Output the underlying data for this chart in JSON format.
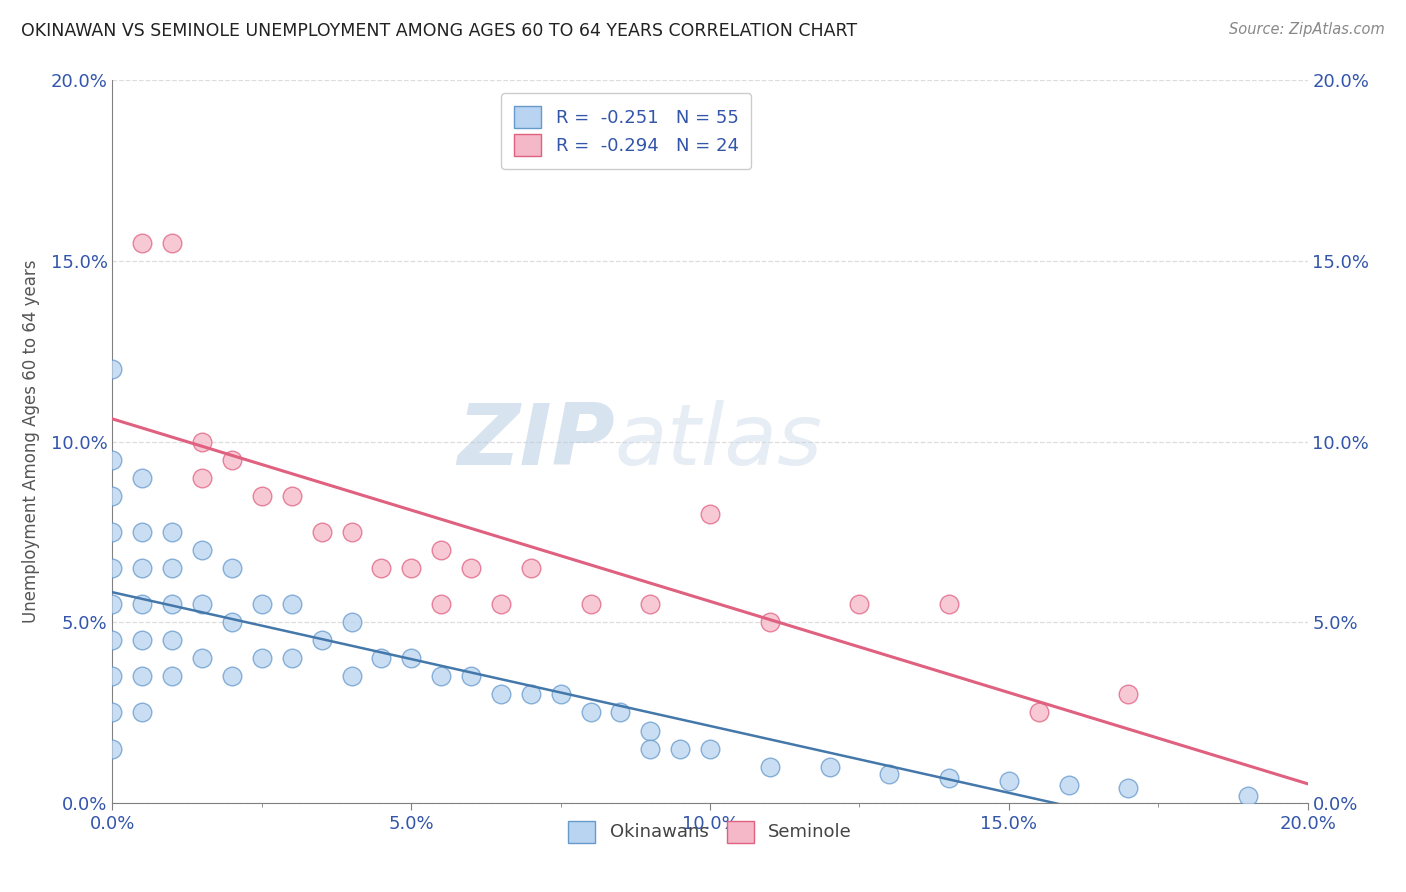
{
  "title": "OKINAWAN VS SEMINOLE UNEMPLOYMENT AMONG AGES 60 TO 64 YEARS CORRELATION CHART",
  "source": "Source: ZipAtlas.com",
  "ylabel": "Unemployment Among Ages 60 to 64 years",
  "xlim": [
    0.0,
    0.2
  ],
  "ylim": [
    0.0,
    0.2
  ],
  "ytick_vals": [
    0.0,
    0.05,
    0.1,
    0.15,
    0.2
  ],
  "ytick_labels": [
    "0.0%",
    "5.0%",
    "10.0%",
    "15.0%",
    "20.0%"
  ],
  "xtick_vals": [
    0.0,
    0.05,
    0.1,
    0.15,
    0.2
  ],
  "xtick_labels": [
    "0.0%",
    "5.0%",
    "10.0%",
    "15.0%",
    "20.0%"
  ],
  "xminor_ticks": [
    0.025,
    0.075,
    0.125,
    0.175
  ],
  "okinawan_color": "#b8d4f0",
  "seminole_color": "#f5b8c8",
  "okinawan_edge_color": "#6699cc",
  "seminole_edge_color": "#e06080",
  "okinawan_line_color": "#4477aa",
  "seminole_line_color": "#e06080",
  "watermark_color": "#d8e8f5",
  "title_color": "#222222",
  "source_color": "#888888",
  "ylabel_color": "#555555",
  "tick_color": "#3355aa",
  "grid_color": "#dddddd",
  "okinawan_x": [
    0.0,
    0.0,
    0.0,
    0.0,
    0.0,
    0.0,
    0.0,
    0.0,
    0.0,
    0.0,
    0.005,
    0.005,
    0.005,
    0.005,
    0.005,
    0.005,
    0.005,
    0.01,
    0.01,
    0.01,
    0.01,
    0.01,
    0.015,
    0.015,
    0.015,
    0.02,
    0.02,
    0.02,
    0.025,
    0.025,
    0.03,
    0.03,
    0.035,
    0.04,
    0.04,
    0.045,
    0.05,
    0.055,
    0.06,
    0.065,
    0.07,
    0.075,
    0.08,
    0.085,
    0.09,
    0.09,
    0.095,
    0.1,
    0.11,
    0.12,
    0.13,
    0.14,
    0.15,
    0.16,
    0.17,
    0.19
  ],
  "okinawan_y": [
    0.12,
    0.095,
    0.085,
    0.075,
    0.065,
    0.055,
    0.045,
    0.035,
    0.025,
    0.015,
    0.09,
    0.075,
    0.065,
    0.055,
    0.045,
    0.035,
    0.025,
    0.075,
    0.065,
    0.055,
    0.045,
    0.035,
    0.07,
    0.055,
    0.04,
    0.065,
    0.05,
    0.035,
    0.055,
    0.04,
    0.055,
    0.04,
    0.045,
    0.05,
    0.035,
    0.04,
    0.04,
    0.035,
    0.035,
    0.03,
    0.03,
    0.03,
    0.025,
    0.025,
    0.02,
    0.015,
    0.015,
    0.015,
    0.01,
    0.01,
    0.008,
    0.007,
    0.006,
    0.005,
    0.004,
    0.002
  ],
  "seminole_x": [
    0.005,
    0.01,
    0.015,
    0.015,
    0.02,
    0.025,
    0.03,
    0.035,
    0.04,
    0.045,
    0.05,
    0.055,
    0.055,
    0.06,
    0.065,
    0.07,
    0.08,
    0.09,
    0.1,
    0.11,
    0.125,
    0.14,
    0.155,
    0.17
  ],
  "seminole_y": [
    0.155,
    0.155,
    0.1,
    0.09,
    0.095,
    0.085,
    0.085,
    0.075,
    0.075,
    0.065,
    0.065,
    0.07,
    0.055,
    0.065,
    0.055,
    0.065,
    0.055,
    0.055,
    0.08,
    0.05,
    0.055,
    0.055,
    0.025,
    0.03
  ]
}
